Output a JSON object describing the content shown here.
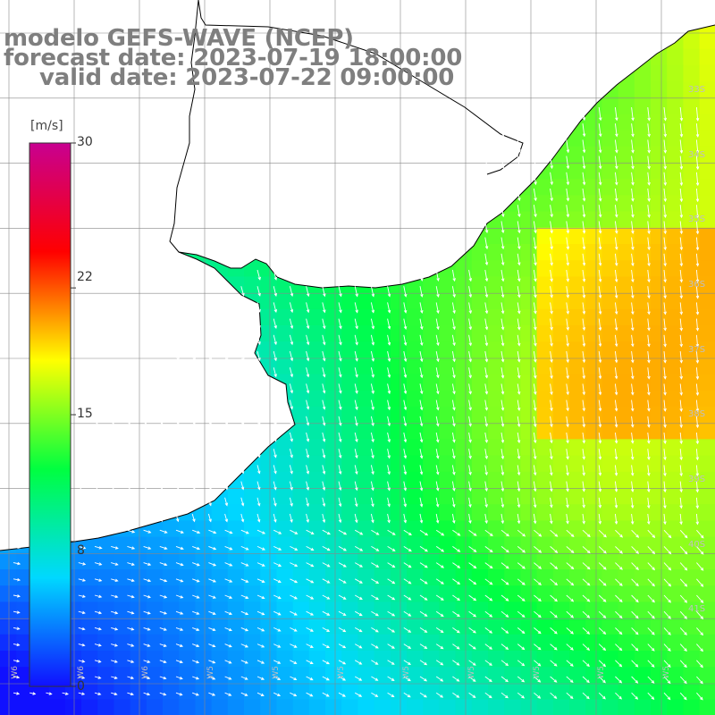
{
  "title": {
    "line1": "modelo GEFS-WAVE (NCEP)",
    "line2": "forecast date: 2023-07-19 18:00:00",
    "line3": "valid date: 2023-07-22 09:00:00"
  },
  "colorbar": {
    "unit": "[m/s]",
    "min": 0,
    "max": 30,
    "ticks": [
      "30",
      "22",
      "15",
      "8",
      "0"
    ],
    "tick_values": [
      30,
      22,
      15,
      8,
      0
    ],
    "colors": [
      "#1010ff",
      "#00d8ff",
      "#00ff40",
      "#ffff00",
      "#ff0000",
      "#c80090"
    ]
  },
  "grid": {
    "lat_labels": [
      "33S",
      "34S",
      "35S",
      "36S",
      "37S",
      "38S",
      "39S",
      "40S",
      "41S"
    ],
    "lon_labels": [
      "W6",
      "W6",
      "W6",
      "W5",
      "W5",
      "W5",
      "W5",
      "W5",
      "W5",
      "W5",
      "W5"
    ]
  },
  "colors": {
    "land": "#ffffff",
    "coast": "#000000",
    "gridline": "#888888",
    "arrow": "#ffffff",
    "title": "#7f7f7f"
  }
}
